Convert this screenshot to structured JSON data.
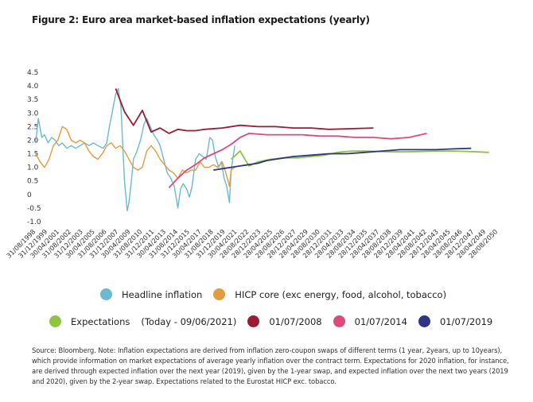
{
  "figure": {
    "title": "Figure 2: Euro area market-based inflation expectations (yearly)"
  },
  "legend": {
    "row1": [
      {
        "label": "Headline inflation",
        "color": "#6bbad1"
      },
      {
        "label": "HICP core (exc energy, food, alcohol, tobacco)",
        "color": "#e39b3f"
      }
    ],
    "row2": [
      {
        "label": "Expectations",
        "color": "#8cc63f"
      },
      {
        "label": "(Today - 09/06/2021)",
        "color": ""
      },
      {
        "label": "01/07/2008",
        "color": "#9b1b30"
      },
      {
        "label": "01/07/2014",
        "color": "#de4a7b"
      },
      {
        "label": "01/07/2019",
        "color": "#2e3584"
      }
    ]
  },
  "source_note": "Source: Bloomberg. Note: Inflation expectations are derived from inflation zero-coupon swaps of different terms (1 year, 2years, up to 10years), which provide information on market expectations of average yearly inflation over the contract term. Expectations for 2020 inflation, for instance, are derived through expected inflation over the next year (2019), given by the 1-year swap, and expected inflation over the next two years (2019 and 2020), given by the 2-year swap. Expectations related to the Eurostat HICP exc. tobacco.",
  "chart_data": {
    "type": "line",
    "y_ticks": [
      "4.5",
      "4.0",
      "3.5",
      "3.0",
      "2.5",
      "2.0",
      "1.5",
      "1.0",
      "0.5",
      "0",
      "-0.5",
      "-1.0"
    ],
    "ylim": [
      -1.0,
      4.5
    ],
    "x_ticks": [
      "31/08/1998",
      "31/12/1999",
      "30/04/2001",
      "31/08/2002",
      "31/12/2003",
      "30/04/2005",
      "31/08/2006",
      "31/12/2007",
      "30/04/2009",
      "31/08/2010",
      "31/12/2011",
      "30/04/2013",
      "31/08/2014",
      "31/12/2015",
      "30/04/2017",
      "31/08/2018",
      "31/12/2019",
      "30/04/2021",
      "28/08/2022",
      "28/12/2023",
      "28/04/2025",
      "28/08/2026",
      "28/12/2027",
      "28/04/2029",
      "28/08/2030",
      "28/12/2031",
      "28/04/2033",
      "28/08/2034",
      "28/12/2035",
      "28/04/2037",
      "28/08/2038",
      "28/12/2039",
      "28/04/2041",
      "28/08/2042",
      "28/12/2043",
      "28/04/2045",
      "28/08/2046",
      "28/12/2047",
      "28/04/2049",
      "28/08/2050"
    ],
    "grid": false,
    "legend_position": "bottom",
    "series": [
      {
        "name": "Headline inflation",
        "color": "#6bbad1",
        "points": [
          [
            1999.0,
            1.9
          ],
          [
            1999.3,
            2.8
          ],
          [
            1999.7,
            2.1
          ],
          [
            2000.0,
            2.2
          ],
          [
            2000.4,
            1.9
          ],
          [
            2000.8,
            2.1
          ],
          [
            2001.2,
            2.0
          ],
          [
            2001.6,
            1.8
          ],
          [
            2002.0,
            1.9
          ],
          [
            2002.5,
            1.7
          ],
          [
            2003.0,
            1.8
          ],
          [
            2003.5,
            1.7
          ],
          [
            2004.0,
            1.8
          ],
          [
            2004.5,
            1.9
          ],
          [
            2005.0,
            1.8
          ],
          [
            2005.5,
            1.9
          ],
          [
            2006.0,
            1.8
          ],
          [
            2006.6,
            1.7
          ],
          [
            2007.0,
            1.9
          ],
          [
            2007.3,
            2.5
          ],
          [
            2007.6,
            3.0
          ],
          [
            2008.0,
            3.7
          ],
          [
            2008.3,
            3.9
          ],
          [
            2008.6,
            3.2
          ],
          [
            2008.8,
            1.8
          ],
          [
            2009.0,
            0.5
          ],
          [
            2009.3,
            -0.6
          ],
          [
            2009.5,
            -0.3
          ],
          [
            2009.8,
            0.6
          ],
          [
            2010.0,
            1.3
          ],
          [
            2010.4,
            1.6
          ],
          [
            2010.8,
            2.0
          ],
          [
            2011.2,
            2.6
          ],
          [
            2011.5,
            2.8
          ],
          [
            2011.9,
            2.5
          ],
          [
            2012.3,
            2.2
          ],
          [
            2012.7,
            2.0
          ],
          [
            2013.0,
            1.8
          ],
          [
            2013.4,
            1.3
          ],
          [
            2013.8,
            0.8
          ],
          [
            2014.2,
            0.6
          ],
          [
            2014.6,
            0.3
          ],
          [
            2015.0,
            -0.5
          ],
          [
            2015.3,
            0.2
          ],
          [
            2015.6,
            0.4
          ],
          [
            2016.0,
            0.2
          ],
          [
            2016.3,
            -0.1
          ],
          [
            2016.6,
            0.3
          ],
          [
            2017.0,
            1.3
          ],
          [
            2017.4,
            1.5
          ],
          [
            2017.8,
            1.4
          ],
          [
            2018.2,
            1.3
          ],
          [
            2018.6,
            2.1
          ],
          [
            2018.9,
            2.0
          ],
          [
            2019.2,
            1.4
          ],
          [
            2019.6,
            1.0
          ],
          [
            2019.9,
            1.2
          ],
          [
            2020.2,
            0.6
          ],
          [
            2020.5,
            0.3
          ],
          [
            2020.8,
            -0.3
          ],
          [
            2021.0,
            0.9
          ],
          [
            2021.4,
            1.8
          ]
        ]
      },
      {
        "name": "HICP core (exc energy, food, alcohol, tobacco)",
        "color": "#e39b3f",
        "points": [
          [
            1999.0,
            1.5
          ],
          [
            1999.5,
            1.2
          ],
          [
            2000.0,
            1.0
          ],
          [
            2000.5,
            1.3
          ],
          [
            2001.0,
            1.8
          ],
          [
            2001.5,
            2.0
          ],
          [
            2002.0,
            2.5
          ],
          [
            2002.5,
            2.4
          ],
          [
            2003.0,
            2.0
          ],
          [
            2003.5,
            1.9
          ],
          [
            2004.0,
            2.0
          ],
          [
            2004.5,
            1.9
          ],
          [
            2005.0,
            1.6
          ],
          [
            2005.5,
            1.4
          ],
          [
            2006.0,
            1.3
          ],
          [
            2006.5,
            1.5
          ],
          [
            2007.0,
            1.8
          ],
          [
            2007.5,
            1.9
          ],
          [
            2008.0,
            1.7
          ],
          [
            2008.5,
            1.8
          ],
          [
            2009.0,
            1.6
          ],
          [
            2009.5,
            1.3
          ],
          [
            2010.0,
            1.0
          ],
          [
            2010.5,
            0.9
          ],
          [
            2011.0,
            1.0
          ],
          [
            2011.5,
            1.6
          ],
          [
            2012.0,
            1.8
          ],
          [
            2012.5,
            1.6
          ],
          [
            2013.0,
            1.3
          ],
          [
            2013.5,
            1.1
          ],
          [
            2014.0,
            0.9
          ],
          [
            2014.5,
            0.8
          ],
          [
            2015.0,
            0.6
          ],
          [
            2015.5,
            0.9
          ],
          [
            2016.0,
            0.8
          ],
          [
            2016.5,
            0.9
          ],
          [
            2017.0,
            0.9
          ],
          [
            2017.5,
            1.2
          ],
          [
            2018.0,
            1.0
          ],
          [
            2018.5,
            1.0
          ],
          [
            2019.0,
            1.1
          ],
          [
            2019.5,
            1.0
          ],
          [
            2020.0,
            1.2
          ],
          [
            2020.4,
            0.8
          ],
          [
            2020.8,
            0.3
          ],
          [
            2021.0,
            0.9
          ],
          [
            2021.4,
            1.0
          ]
        ]
      },
      {
        "name": "Expectations",
        "color": "#8cc63f",
        "points": [
          [
            2021.0,
            1.3
          ],
          [
            2021.5,
            1.45
          ],
          [
            2022.0,
            1.6
          ],
          [
            2023.0,
            1.05
          ],
          [
            2024.0,
            1.2
          ],
          [
            2025.5,
            1.3
          ],
          [
            2027.0,
            1.35
          ],
          [
            2028.5,
            1.35
          ],
          [
            2030.0,
            1.4
          ],
          [
            2031.5,
            1.45
          ],
          [
            2033.0,
            1.55
          ],
          [
            2034.5,
            1.6
          ],
          [
            2036.0,
            1.6
          ],
          [
            2038.0,
            1.58
          ],
          [
            2040.0,
            1.57
          ],
          [
            2042.0,
            1.58
          ],
          [
            2044.0,
            1.6
          ],
          [
            2046.0,
            1.6
          ],
          [
            2048.0,
            1.58
          ],
          [
            2050.0,
            1.55
          ]
        ]
      },
      {
        "name": "01/07/2008",
        "color": "#9b1b30",
        "points": [
          [
            2008.0,
            3.9
          ],
          [
            2009.0,
            3.05
          ],
          [
            2010.0,
            2.55
          ],
          [
            2011.0,
            3.1
          ],
          [
            2012.0,
            2.3
          ],
          [
            2013.0,
            2.45
          ],
          [
            2014.0,
            2.25
          ],
          [
            2015.0,
            2.4
          ],
          [
            2016.0,
            2.35
          ],
          [
            2017.0,
            2.35
          ],
          [
            2018.0,
            2.4
          ],
          [
            2020.0,
            2.45
          ],
          [
            2022.0,
            2.55
          ],
          [
            2024.0,
            2.5
          ],
          [
            2026.0,
            2.5
          ],
          [
            2028.0,
            2.45
          ],
          [
            2030.0,
            2.45
          ],
          [
            2032.0,
            2.4
          ],
          [
            2034.0,
            2.42
          ],
          [
            2037.0,
            2.45
          ]
        ]
      },
      {
        "name": "01/07/2014",
        "color": "#de4a7b",
        "points": [
          [
            2014.0,
            0.25
          ],
          [
            2015.0,
            0.6
          ],
          [
            2016.0,
            0.9
          ],
          [
            2017.0,
            1.1
          ],
          [
            2018.0,
            1.35
          ],
          [
            2019.0,
            1.5
          ],
          [
            2020.0,
            1.65
          ],
          [
            2021.0,
            1.85
          ],
          [
            2022.0,
            2.1
          ],
          [
            2023.0,
            2.25
          ],
          [
            2025.0,
            2.2
          ],
          [
            2027.0,
            2.2
          ],
          [
            2029.0,
            2.2
          ],
          [
            2031.0,
            2.15
          ],
          [
            2033.0,
            2.15
          ],
          [
            2035.0,
            2.1
          ],
          [
            2037.0,
            2.1
          ],
          [
            2039.0,
            2.05
          ],
          [
            2041.0,
            2.1
          ],
          [
            2043.0,
            2.25
          ]
        ]
      },
      {
        "name": "01/07/2019",
        "color": "#2e3584",
        "points": [
          [
            2019.0,
            0.9
          ],
          [
            2020.0,
            0.95
          ],
          [
            2021.0,
            1.0
          ],
          [
            2022.0,
            1.05
          ],
          [
            2023.0,
            1.1
          ],
          [
            2024.0,
            1.15
          ],
          [
            2025.0,
            1.25
          ],
          [
            2026.0,
            1.3
          ],
          [
            2027.0,
            1.35
          ],
          [
            2028.0,
            1.4
          ],
          [
            2030.0,
            1.45
          ],
          [
            2032.0,
            1.5
          ],
          [
            2034.0,
            1.5
          ],
          [
            2036.0,
            1.55
          ],
          [
            2038.0,
            1.6
          ],
          [
            2040.0,
            1.65
          ],
          [
            2042.0,
            1.65
          ],
          [
            2044.0,
            1.65
          ],
          [
            2046.0,
            1.68
          ],
          [
            2048.0,
            1.7
          ]
        ]
      }
    ]
  }
}
